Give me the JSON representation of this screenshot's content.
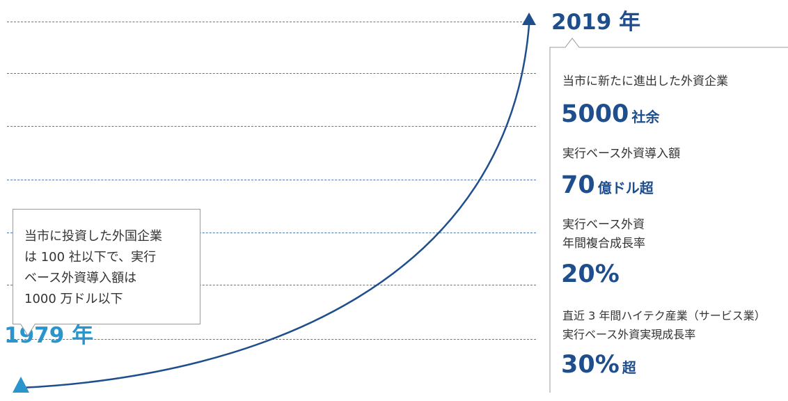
{
  "diagram": {
    "start_year": "1979 年",
    "end_year": "2019 年",
    "start_note": "当市に投資した外国企業\nは 100 社以下で、実行\nベース外資導入額は\n1000 万ドル以下",
    "stats": [
      {
        "label": "当市に新たに進出した外資企業",
        "value": "5000",
        "unit": "社余"
      },
      {
        "label": "実行ベース外資導入額",
        "value": "70",
        "unit": "億ドル超"
      },
      {
        "label": "実行ベース外資\n年間複合成長率",
        "value": "20%",
        "unit": ""
      },
      {
        "label": "直近 3 年間ハイテク産業（サービス業）\n実行ベース外資実現成長率",
        "value": "30%",
        "unit": "超"
      }
    ]
  },
  "colors": {
    "dark_blue": "#1f4e8c",
    "light_blue": "#2a94cc",
    "gridline": "#4f79b0",
    "text": "#333333",
    "border": "#9a9a9a"
  }
}
